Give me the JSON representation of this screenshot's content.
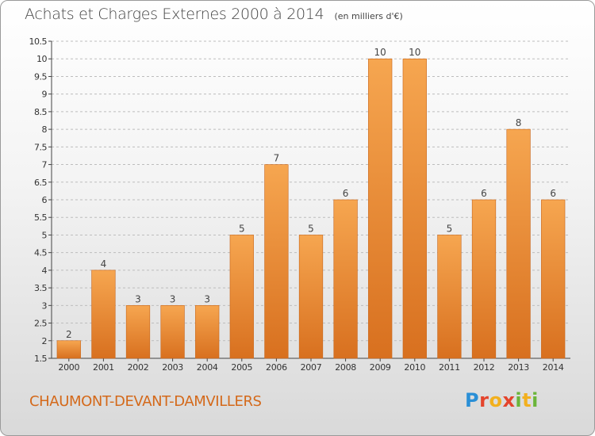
{
  "header": {
    "title": "Achats et Charges Externes 2000 à 2014",
    "unit": "(en milliers d'€)"
  },
  "footer": {
    "place": "CHAUMONT-DEVANT-DAMVILLERS",
    "logo": "Proxiti"
  },
  "colors": {
    "bar_top": "#f6a650",
    "bar_bottom": "#d8701f",
    "grid": "#bdbdbd",
    "axis": "#444444",
    "place_text": "#d4691a"
  },
  "chart_data": {
    "type": "bar",
    "title": "Achats et Charges Externes 2000 à 2014",
    "subtitle": "(en milliers d'€)",
    "xlabel": "",
    "ylabel": "",
    "categories": [
      "2000",
      "2001",
      "2002",
      "2003",
      "2004",
      "2005",
      "2006",
      "2007",
      "2008",
      "2009",
      "2010",
      "2011",
      "2012",
      "2013",
      "2014"
    ],
    "values": [
      2,
      4,
      3,
      3,
      3,
      5,
      7,
      5,
      6,
      10,
      10,
      5,
      6,
      8,
      6
    ],
    "ylim": [
      1.5,
      10.5
    ],
    "yticks": [
      "1.5",
      "2",
      "2.5",
      "3",
      "3.5",
      "4",
      "4.5",
      "5",
      "5.5",
      "6",
      "6.5",
      "7",
      "7.5",
      "8",
      "8.5",
      "9",
      "9.5",
      "10",
      "10.5"
    ],
    "grid": true,
    "legend": "none"
  }
}
